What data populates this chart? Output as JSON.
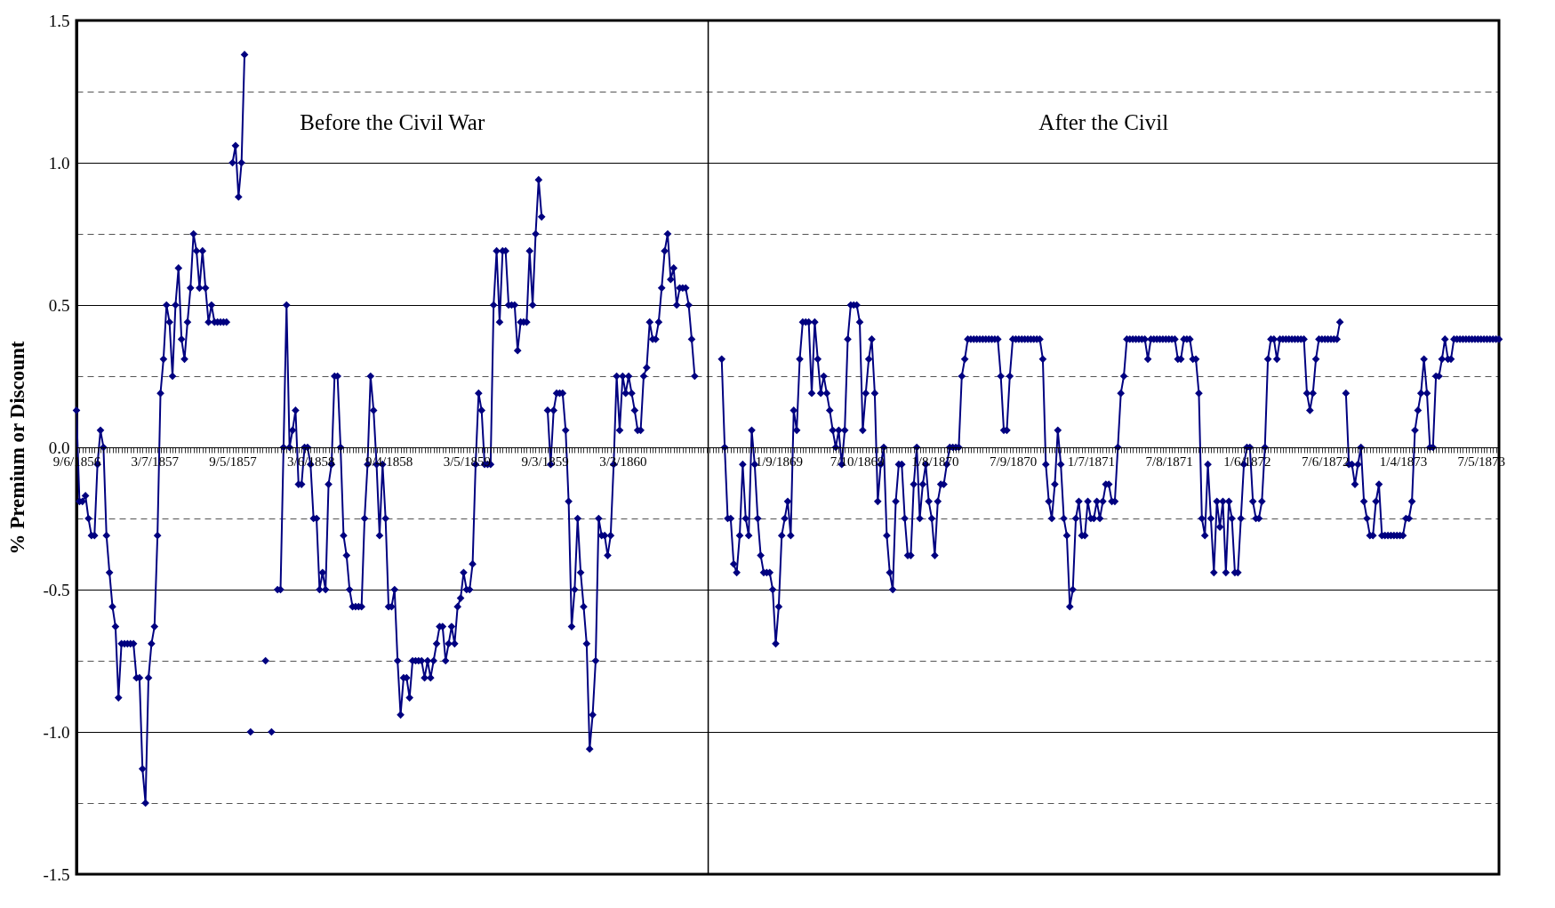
{
  "chart_data": {
    "type": "line",
    "ylabel": "% Premium or Discount",
    "categories": [
      "9/6/1856",
      null,
      null,
      null,
      null,
      null,
      null,
      null,
      null,
      null,
      null,
      null,
      null,
      null,
      null,
      null,
      null,
      null,
      null,
      null,
      null,
      null,
      null,
      null,
      null,
      null,
      "3/7/1857",
      null,
      null,
      null,
      null,
      null,
      null,
      null,
      null,
      null,
      null,
      null,
      null,
      null,
      null,
      null,
      null,
      null,
      null,
      null,
      null,
      null,
      null,
      null,
      null,
      null,
      "9/5/1857",
      null,
      null,
      null,
      null,
      null,
      null,
      null,
      null,
      null,
      null,
      null,
      null,
      null,
      null,
      null,
      null,
      null,
      null,
      null,
      null,
      null,
      null,
      null,
      null,
      null,
      "3/6/1858",
      null,
      null,
      null,
      null,
      null,
      null,
      null,
      null,
      null,
      null,
      null,
      null,
      null,
      null,
      null,
      null,
      null,
      null,
      null,
      null,
      null,
      null,
      null,
      null,
      null,
      "9/4/1858",
      null,
      null,
      null,
      null,
      null,
      null,
      null,
      null,
      null,
      null,
      null,
      null,
      null,
      null,
      null,
      null,
      null,
      null,
      null,
      null,
      null,
      null,
      null,
      null,
      null,
      "3/5/1859",
      null,
      null,
      null,
      null,
      null,
      null,
      null,
      null,
      null,
      null,
      null,
      null,
      null,
      null,
      null,
      null,
      null,
      null,
      null,
      null,
      null,
      null,
      null,
      null,
      null,
      "9/3/1859",
      null,
      null,
      null,
      null,
      null,
      null,
      null,
      null,
      null,
      null,
      null,
      null,
      null,
      null,
      null,
      null,
      null,
      null,
      null,
      null,
      null,
      null,
      null,
      null,
      null,
      "3/3/1860",
      null,
      null,
      null,
      null,
      null,
      null,
      null,
      null,
      null,
      null,
      null,
      null,
      null,
      null,
      null,
      null,
      null,
      null,
      null,
      null,
      null,
      null,
      null,
      null,
      null,
      null,
      null,
      null,
      null,
      null,
      null,
      null,
      null,
      null,
      null,
      null,
      null,
      null,
      null,
      null,
      null,
      null,
      null,
      null,
      null,
      null,
      null,
      null,
      null,
      null,
      null,
      "1/9/1869",
      null,
      null,
      null,
      null,
      null,
      null,
      null,
      null,
      null,
      null,
      null,
      null,
      null,
      null,
      null,
      null,
      null,
      null,
      null,
      null,
      null,
      null,
      null,
      null,
      null,
      "7/10/1869",
      null,
      null,
      null,
      null,
      null,
      null,
      null,
      null,
      null,
      null,
      null,
      null,
      null,
      null,
      null,
      null,
      null,
      null,
      null,
      null,
      null,
      null,
      null,
      null,
      null,
      "1/8/1870",
      null,
      null,
      null,
      null,
      null,
      null,
      null,
      null,
      null,
      null,
      null,
      null,
      null,
      null,
      null,
      null,
      null,
      null,
      null,
      null,
      null,
      null,
      null,
      null,
      null,
      "7/9/1870",
      null,
      null,
      null,
      null,
      null,
      null,
      null,
      null,
      null,
      null,
      null,
      null,
      null,
      null,
      null,
      null,
      null,
      null,
      null,
      null,
      null,
      null,
      null,
      null,
      null,
      "1/7/1871",
      null,
      null,
      null,
      null,
      null,
      null,
      null,
      null,
      null,
      null,
      null,
      null,
      null,
      null,
      null,
      null,
      null,
      null,
      null,
      null,
      null,
      null,
      null,
      null,
      null,
      "7/8/1871",
      null,
      null,
      null,
      null,
      null,
      null,
      null,
      null,
      null,
      null,
      null,
      null,
      null,
      null,
      null,
      null,
      null,
      null,
      null,
      null,
      null,
      null,
      null,
      null,
      null,
      "1/6/1872",
      null,
      null,
      null,
      null,
      null,
      null,
      null,
      null,
      null,
      null,
      null,
      null,
      null,
      null,
      null,
      null,
      null,
      null,
      null,
      null,
      null,
      null,
      null,
      null,
      null,
      "7/6/1872",
      null,
      null,
      null,
      null,
      null,
      null,
      null,
      null,
      null,
      null,
      null,
      null,
      null,
      null,
      null,
      null,
      null,
      null,
      null,
      null,
      null,
      null,
      null,
      null,
      null,
      "1/4/1873",
      null,
      null,
      null,
      null,
      null,
      null,
      null,
      null,
      null,
      null,
      null,
      null,
      null,
      null,
      null,
      null,
      null,
      null,
      null,
      null,
      null,
      null,
      null,
      null,
      null,
      "7/5/1873",
      null,
      null,
      null,
      null,
      null,
      null
    ],
    "series": [
      {
        "color": "#000080",
        "values": [
          0.13,
          -0.19,
          -0.19,
          -0.17,
          -0.25,
          -0.31,
          -0.31,
          -0.06,
          0.06,
          0,
          -0.31,
          -0.44,
          -0.56,
          -0.63,
          -0.88,
          -0.69,
          -0.69,
          -0.69,
          -0.69,
          -0.69,
          -0.81,
          -0.81,
          -1.13,
          -1.25,
          -0.81,
          -0.69,
          -0.63,
          -0.31,
          0.19,
          0.31,
          0.5,
          0.44,
          0.25,
          0.5,
          0.63,
          0.38,
          0.31,
          0.44,
          0.56,
          0.75,
          0.69,
          0.56,
          0.69,
          0.56,
          0.44,
          0.5,
          0.44,
          0.44,
          0.44,
          0.44,
          0.44,
          null,
          1.0,
          1.06,
          0.88,
          1.0,
          1.38,
          null,
          -1.0,
          null,
          null,
          null,
          null,
          -0.75,
          null,
          -1.0,
          null,
          -0.5,
          -0.5,
          0,
          0.5,
          0,
          0.06,
          0.13,
          -0.13,
          -0.13,
          0,
          0,
          -0.06,
          -0.25,
          -0.25,
          -0.5,
          -0.44,
          -0.5,
          -0.13,
          -0.06,
          0.25,
          0.25,
          0,
          -0.31,
          -0.38,
          -0.5,
          -0.56,
          -0.56,
          -0.56,
          -0.56,
          -0.25,
          -0.06,
          0.25,
          0.13,
          -0.06,
          -0.31,
          -0.06,
          -0.25,
          -0.56,
          -0.56,
          -0.5,
          -0.75,
          -0.94,
          -0.81,
          -0.81,
          -0.88,
          -0.75,
          -0.75,
          -0.75,
          -0.75,
          -0.81,
          -0.75,
          -0.81,
          -0.75,
          -0.69,
          -0.63,
          -0.63,
          -0.75,
          -0.69,
          -0.63,
          -0.69,
          -0.56,
          -0.53,
          -0.44,
          -0.5,
          -0.5,
          -0.41,
          -0.06,
          0.19,
          0.13,
          -0.06,
          -0.06,
          -0.06,
          0.5,
          0.69,
          0.44,
          0.69,
          0.69,
          0.5,
          0.5,
          0.5,
          0.34,
          0.44,
          0.44,
          0.44,
          0.69,
          0.5,
          0.75,
          0.94,
          0.81,
          null,
          0.13,
          -0.06,
          0.13,
          0.19,
          0.19,
          0.19,
          0.06,
          -0.19,
          -0.63,
          -0.5,
          -0.25,
          -0.44,
          -0.56,
          -0.69,
          -1.06,
          -0.94,
          -0.75,
          -0.25,
          -0.31,
          -0.31,
          -0.38,
          -0.31,
          -0.06,
          0.25,
          0.06,
          0.25,
          0.19,
          0.25,
          0.19,
          0.13,
          0.06,
          0.06,
          0.25,
          0.28,
          0.44,
          0.38,
          0.38,
          0.44,
          0.56,
          0.69,
          0.75,
          0.59,
          0.63,
          0.5,
          0.56,
          0.56,
          0.56,
          0.5,
          0.38,
          0.25,
          null,
          null,
          null,
          null,
          null,
          null,
          null,
          null,
          0.31,
          0,
          -0.25,
          -0.25,
          -0.41,
          -0.44,
          -0.31,
          -0.06,
          -0.25,
          -0.31,
          0.06,
          -0.06,
          -0.25,
          -0.38,
          -0.44,
          -0.44,
          -0.44,
          -0.5,
          -0.69,
          -0.56,
          -0.31,
          -0.25,
          -0.19,
          -0.31,
          0.13,
          0.06,
          0.31,
          0.44,
          0.44,
          0.44,
          0.19,
          0.44,
          0.31,
          0.19,
          0.25,
          0.19,
          0.13,
          0.06,
          0,
          0.06,
          -0.06,
          0.06,
          0.38,
          0.5,
          0.5,
          0.5,
          0.44,
          0.06,
          0.19,
          0.31,
          0.38,
          0.19,
          -0.19,
          -0.06,
          0,
          -0.31,
          -0.44,
          -0.5,
          -0.19,
          -0.06,
          -0.06,
          -0.25,
          -0.38,
          -0.38,
          -0.13,
          0,
          -0.25,
          -0.13,
          -0.06,
          -0.19,
          -0.25,
          -0.38,
          -0.19,
          -0.13,
          -0.13,
          -0.06,
          0,
          0,
          0,
          0,
          0.25,
          0.31,
          0.38,
          0.38,
          0.38,
          0.38,
          0.38,
          0.38,
          0.38,
          0.38,
          0.38,
          0.38,
          0.38,
          0.25,
          0.06,
          0.06,
          0.25,
          0.38,
          0.38,
          0.38,
          0.38,
          0.38,
          0.38,
          0.38,
          0.38,
          0.38,
          0.38,
          0.31,
          -0.06,
          -0.19,
          -0.25,
          -0.13,
          0.06,
          -0.06,
          -0.25,
          -0.31,
          -0.56,
          -0.5,
          -0.25,
          -0.19,
          -0.31,
          -0.31,
          -0.19,
          -0.25,
          -0.25,
          -0.19,
          -0.25,
          -0.19,
          -0.13,
          -0.13,
          -0.19,
          -0.19,
          0,
          0.19,
          0.25,
          0.38,
          0.38,
          0.38,
          0.38,
          0.38,
          0.38,
          0.38,
          0.31,
          0.38,
          0.38,
          0.38,
          0.38,
          0.38,
          0.38,
          0.38,
          0.38,
          0.38,
          0.31,
          0.31,
          0.38,
          0.38,
          0.38,
          0.31,
          0.31,
          0.19,
          -0.25,
          -0.31,
          -0.06,
          -0.25,
          -0.44,
          -0.19,
          -0.28,
          -0.19,
          -0.44,
          -0.19,
          -0.25,
          -0.44,
          -0.44,
          -0.25,
          -0.06,
          0,
          0,
          -0.19,
          -0.25,
          -0.25,
          -0.19,
          0,
          0.31,
          0.38,
          0.38,
          0.31,
          0.38,
          0.38,
          0.38,
          0.38,
          0.38,
          0.38,
          0.38,
          0.38,
          0.38,
          0.19,
          0.13,
          0.19,
          0.31,
          0.38,
          0.38,
          0.38,
          0.38,
          0.38,
          0.38,
          0.38,
          0.44,
          null,
          0.19,
          -0.06,
          -0.06,
          -0.13,
          -0.06,
          0,
          -0.19,
          -0.25,
          -0.31,
          -0.31,
          -0.19,
          -0.13,
          -0.31,
          -0.31,
          -0.31,
          -0.31,
          -0.31,
          -0.31,
          -0.31,
          -0.31,
          -0.25,
          -0.25,
          -0.19,
          0.06,
          0.13,
          0.19,
          0.31,
          0.19,
          0,
          0,
          0.25,
          0.25,
          0.31,
          0.38,
          0.31,
          0.31,
          0.38,
          0.38,
          0.38,
          0.38,
          0.38,
          0.38,
          0.38,
          0.38,
          0.38,
          0.38,
          0.38,
          0.38,
          0.38,
          0.38,
          0.38,
          0.38
        ]
      }
    ],
    "ylim": [
      -1.5,
      1.5
    ],
    "yticks": [
      -1.5,
      {
        "value": -1.25,
        "label": null
      },
      {
        "value": -1,
        "label": "-1.0"
      },
      {
        "value": -0.75,
        "label": null
      },
      -0.5,
      {
        "value": -0.25,
        "label": null
      },
      {
        "value": 0,
        "label": "0.0"
      },
      {
        "value": 0.25,
        "label": null
      },
      0.5,
      {
        "value": 0.75,
        "label": null
      },
      {
        "value": 1,
        "label": "1.0"
      },
      {
        "value": 1.25,
        "label": null
      },
      1.5
    ],
    "grid": "y",
    "marker": "diamond",
    "line_style": "solid",
    "annotations": [
      "Before the Civil War",
      "After the Civil"
    ]
  }
}
